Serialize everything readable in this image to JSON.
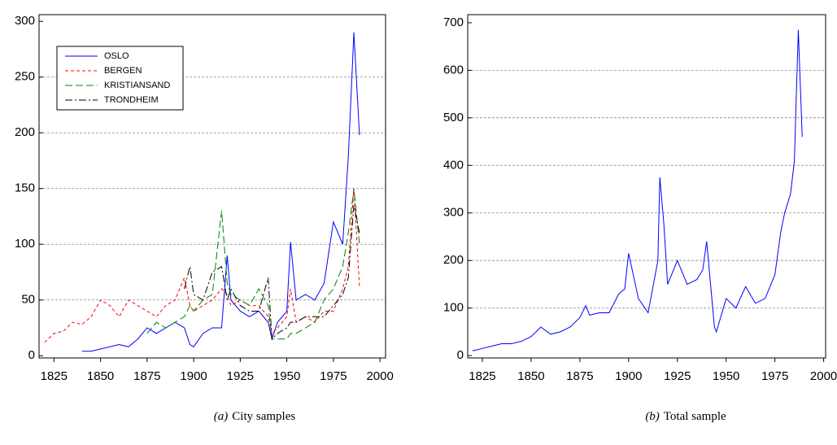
{
  "chart_data": [
    {
      "type": "line",
      "caption_label": "(a)",
      "caption": "City samples",
      "x": [
        1820,
        1825,
        1830,
        1835,
        1840,
        1845,
        1850,
        1855,
        1860,
        1865,
        1870,
        1875,
        1880,
        1885,
        1890,
        1895,
        1898,
        1900,
        1905,
        1910,
        1915,
        1918,
        1920,
        1925,
        1930,
        1935,
        1940,
        1942,
        1945,
        1950,
        1952,
        1955,
        1960,
        1965,
        1970,
        1975,
        1980,
        1983,
        1986,
        1989
      ],
      "series": [
        {
          "name": "OSLO",
          "color": "#0000ff",
          "style": "solid",
          "values": [
            null,
            null,
            null,
            null,
            4,
            4,
            6,
            8,
            10,
            8,
            15,
            25,
            20,
            25,
            30,
            25,
            10,
            8,
            20,
            25,
            25,
            90,
            50,
            40,
            35,
            40,
            30,
            15,
            30,
            40,
            102,
            50,
            55,
            50,
            65,
            120,
            100,
            178,
            290,
            198
          ]
        },
        {
          "name": "BERGEN",
          "color": "#ff0000",
          "style": "dashed",
          "values": [
            12,
            20,
            22,
            30,
            28,
            35,
            50,
            45,
            35,
            50,
            45,
            40,
            35,
            45,
            50,
            70,
            45,
            40,
            45,
            50,
            60,
            55,
            45,
            50,
            45,
            45,
            35,
            20,
            25,
            35,
            60,
            30,
            35,
            30,
            40,
            40,
            60,
            80,
            150,
            62
          ]
        },
        {
          "name": "KRISTIANSAND",
          "color": "#008000",
          "style": "long-dash",
          "values": [
            null,
            null,
            null,
            null,
            null,
            null,
            null,
            null,
            null,
            null,
            null,
            20,
            30,
            25,
            30,
            35,
            45,
            40,
            50,
            55,
            130,
            65,
            55,
            50,
            45,
            60,
            45,
            15,
            15,
            15,
            20,
            20,
            25,
            30,
            50,
            60,
            80,
            110,
            150,
            100
          ]
        },
        {
          "name": "TRONDHEIM",
          "color": "#000000",
          "style": "dash-dot",
          "values": [
            null,
            null,
            null,
            null,
            null,
            null,
            null,
            null,
            null,
            null,
            null,
            null,
            null,
            null,
            null,
            60,
            80,
            55,
            50,
            75,
            80,
            50,
            60,
            45,
            40,
            40,
            70,
            15,
            20,
            25,
            30,
            30,
            35,
            35,
            35,
            45,
            55,
            70,
            135,
            110
          ]
        }
      ],
      "xlim": [
        1817,
        2003
      ],
      "xticks": [
        1825,
        1850,
        1875,
        1900,
        1925,
        1950,
        1975,
        2000
      ],
      "ylim": [
        -2,
        306
      ],
      "yticks": [
        0,
        50,
        100,
        150,
        200,
        250,
        300
      ],
      "grid": true,
      "legend": "upper-left"
    },
    {
      "type": "line",
      "caption_label": "(b)",
      "caption": "Total sample",
      "x": [
        1820,
        1825,
        1830,
        1835,
        1840,
        1845,
        1850,
        1855,
        1860,
        1865,
        1870,
        1875,
        1878,
        1880,
        1885,
        1890,
        1895,
        1898,
        1900,
        1905,
        1910,
        1915,
        1916,
        1918,
        1920,
        1925,
        1930,
        1935,
        1938,
        1940,
        1942,
        1944,
        1945,
        1950,
        1955,
        1960,
        1965,
        1970,
        1975,
        1978,
        1980,
        1983,
        1985,
        1986,
        1987,
        1989
      ],
      "series": [
        {
          "color": "#0000ff",
          "style": "solid",
          "values": [
            10,
            15,
            20,
            25,
            25,
            30,
            40,
            60,
            45,
            50,
            60,
            80,
            105,
            85,
            90,
            90,
            130,
            140,
            215,
            120,
            90,
            200,
            375,
            280,
            150,
            200,
            150,
            160,
            180,
            240,
            150,
            60,
            50,
            120,
            100,
            145,
            110,
            120,
            170,
            260,
            300,
            340,
            410,
            550,
            685,
            460
          ]
        }
      ],
      "xlim": [
        1817.5,
        2001
      ],
      "xticks": [
        1825,
        1850,
        1875,
        1900,
        1925,
        1950,
        1975,
        2000
      ],
      "ylim": [
        -5,
        717
      ],
      "yticks": [
        0,
        100,
        200,
        300,
        400,
        500,
        600,
        700
      ],
      "grid": true
    }
  ]
}
